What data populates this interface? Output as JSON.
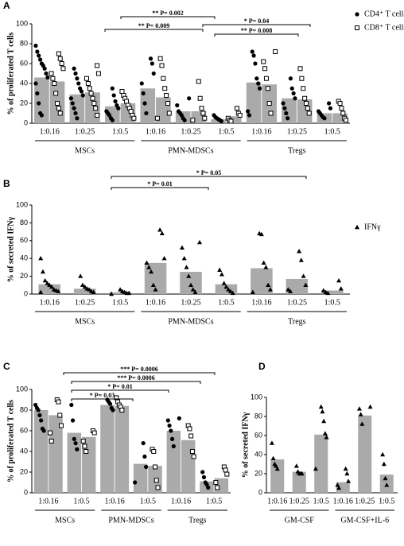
{
  "chart_data": [
    {
      "type": "bar",
      "panel": "A",
      "y_label": "% of proliferated T cells",
      "categories": [
        "1:0.16",
        "1:0.25",
        "1:0.5",
        "1:0.16",
        "1:0.25",
        "1:0.5",
        "1:0.16",
        "1:0.25",
        "1:0.5"
      ],
      "groups": [
        "MSCs",
        "PMN-MDSCs",
        "Tregs"
      ],
      "ylim": [
        0,
        100
      ],
      "yticks": [
        0,
        20,
        40,
        60,
        80,
        100
      ],
      "bar_color": "#aaaaaa",
      "series": [
        {
          "name": "CD4⁺ T cells",
          "marker": "circle",
          "color": "#000000",
          "values": [
            46,
            29,
            17,
            35,
            12,
            4,
            41,
            25,
            10
          ],
          "points": [
            [
              78,
              72,
              68,
              64,
              60,
              58,
              55,
              50,
              46,
              40,
              30,
              20,
              10,
              8
            ],
            [
              55,
              50,
              45,
              40,
              35,
              32,
              28,
              25,
              20,
              15,
              10,
              5
            ],
            [
              35,
              28,
              22,
              18,
              15,
              12,
              10,
              8,
              5,
              3
            ],
            [
              65,
              60,
              50,
              40,
              30,
              20,
              10
            ],
            [
              25,
              18,
              12,
              10,
              8,
              5,
              3
            ],
            [
              8,
              6,
              5,
              4,
              3,
              2
            ],
            [
              72,
              68,
              60,
              45,
              40,
              35,
              12,
              8
            ],
            [
              45,
              35,
              30,
              25,
              20,
              15,
              10,
              5
            ],
            [
              20,
              15,
              12,
              10,
              8,
              6,
              5
            ]
          ]
        },
        {
          "name": "CD8⁺ T cells",
          "marker": "square",
          "color": "#000000",
          "values": [
            42,
            31,
            20,
            26,
            12,
            7,
            39,
            24,
            10
          ],
          "points": [
            [
              70,
              65,
              60,
              55,
              50,
              45,
              40,
              30,
              20,
              15,
              10
            ],
            [
              58,
              50,
              45,
              40,
              35,
              30,
              25,
              20,
              15,
              8
            ],
            [
              32,
              28,
              25,
              22,
              18,
              15,
              12,
              8,
              5
            ],
            [
              65,
              58,
              45,
              35,
              28,
              20,
              10,
              5
            ],
            [
              42,
              25,
              15,
              10,
              5,
              3
            ],
            [
              15,
              10,
              8,
              5,
              3,
              2
            ],
            [
              72,
              62,
              55,
              45,
              35,
              20,
              10
            ],
            [
              55,
              45,
              35,
              25,
              20,
              15,
              10
            ],
            [
              22,
              20,
              15,
              10,
              5,
              3
            ]
          ]
        }
      ],
      "annotations": [
        "** P= 0.002",
        "** P= 0.009",
        "* P= 0.04",
        "** P= 0.008"
      ]
    },
    {
      "type": "bar",
      "panel": "B",
      "y_label": "% of secreted IFNγ",
      "categories": [
        "1:0.16",
        "1:0.25",
        "1:0.5",
        "1:0.16",
        "1:0.25",
        "1:0.5",
        "1:0.16",
        "1:0.25",
        "1:0.5"
      ],
      "groups": [
        "MSCs",
        "PMN-MDSCs",
        "Tregs"
      ],
      "ylim": [
        0,
        100
      ],
      "yticks": [
        0,
        20,
        40,
        60,
        80,
        100
      ],
      "bar_color": "#aaaaaa",
      "series": [
        {
          "name": "IFNγ",
          "marker": "triangle",
          "color": "#000000",
          "values": [
            11,
            6,
            2,
            35,
            25,
            11,
            29,
            17,
            4
          ],
          "points": [
            [
              40,
              25,
              15,
              12,
              10,
              8,
              5,
              4,
              3,
              2
            ],
            [
              20,
              10,
              8,
              6,
              5,
              3,
              2
            ],
            [
              5,
              3,
              2,
              1,
              1,
              0
            ],
            [
              72,
              68,
              40,
              35,
              30,
              25,
              10,
              5
            ],
            [
              58,
              52,
              40,
              30,
              20,
              10,
              5,
              2
            ],
            [
              27,
              22,
              12,
              8,
              5,
              3,
              1
            ],
            [
              68,
              67,
              35,
              30,
              10,
              5,
              2
            ],
            [
              48,
              38,
              20,
              10,
              5,
              3
            ],
            [
              15,
              6,
              4,
              2,
              1
            ]
          ]
        }
      ],
      "annotations": [
        "* P= 0.01",
        "* P= 0.05"
      ]
    },
    {
      "type": "bar",
      "panel": "C",
      "y_label": "% of proliferated T cells",
      "categories": [
        "1:0.16",
        "1:0.5",
        "1:0.16",
        "1:0.5",
        "1:0.16",
        "1:0.5"
      ],
      "groups": [
        "MSCs",
        "PMN-MDSCs",
        "Tregs"
      ],
      "ylim": [
        0,
        100
      ],
      "yticks": [
        0,
        20,
        40,
        60,
        80,
        100
      ],
      "bar_color": "#aaaaaa",
      "series": [
        {
          "marker": "circle",
          "color": "#000000",
          "values": [
            80,
            58,
            85,
            28,
            60,
            11
          ],
          "points": [
            [
              85,
              82,
              80,
              75,
              70,
              62,
              60
            ],
            [
              85,
              70,
              52,
              48,
              42
            ],
            [
              90,
              88,
              86,
              82,
              80
            ],
            [
              48,
              35,
              25,
              10
            ],
            [
              72,
              70,
              65,
              60,
              52,
              45
            ],
            [
              20,
              15,
              10,
              8,
              5
            ]
          ]
        },
        {
          "marker": "square",
          "color": "#000000",
          "values": [
            75,
            54,
            84,
            26,
            51,
            14
          ],
          "points": [
            [
              90,
              88,
              75,
              65,
              58,
              50
            ],
            [
              60,
              58,
              50,
              45,
              40
            ],
            [
              92,
              88,
              85,
              83,
              80
            ],
            [
              42,
              40,
              25,
              12,
              5
            ],
            [
              65,
              62,
              55,
              40,
              35
            ],
            [
              25,
              22,
              18,
              10,
              5
            ]
          ]
        }
      ],
      "annotations": [
        "*** P= 0.0006",
        "*** P= 0.0006",
        "* P= 0.01",
        "* P= 0.03"
      ]
    },
    {
      "type": "bar",
      "panel": "D",
      "y_label": "% of secreted IFNγ",
      "categories": [
        "1:0.16",
        "1:0.25",
        "1:0.5",
        "1:0.16",
        "1:0.25",
        "1:0.5"
      ],
      "groups": [
        "GM-CSF",
        "GM-CSF+IL-6"
      ],
      "ylim": [
        0,
        100
      ],
      "yticks": [
        0,
        20,
        40,
        60,
        80,
        100
      ],
      "bar_color": "#aaaaaa",
      "series": [
        {
          "marker": "triangle",
          "color": "#000000",
          "values": [
            35,
            22,
            61,
            11,
            81,
            19
          ],
          "points": [
            [
              52,
              36,
              30,
              28,
              25
            ],
            [
              28,
              22,
              20,
              20,
              20
            ],
            [
              90,
              85,
              75,
              62,
              58,
              25
            ],
            [
              25,
              20,
              12,
              8,
              5
            ],
            [
              90,
              88,
              82,
              72
            ],
            [
              40,
              30,
              15,
              8
            ]
          ]
        }
      ],
      "annotations": []
    }
  ]
}
